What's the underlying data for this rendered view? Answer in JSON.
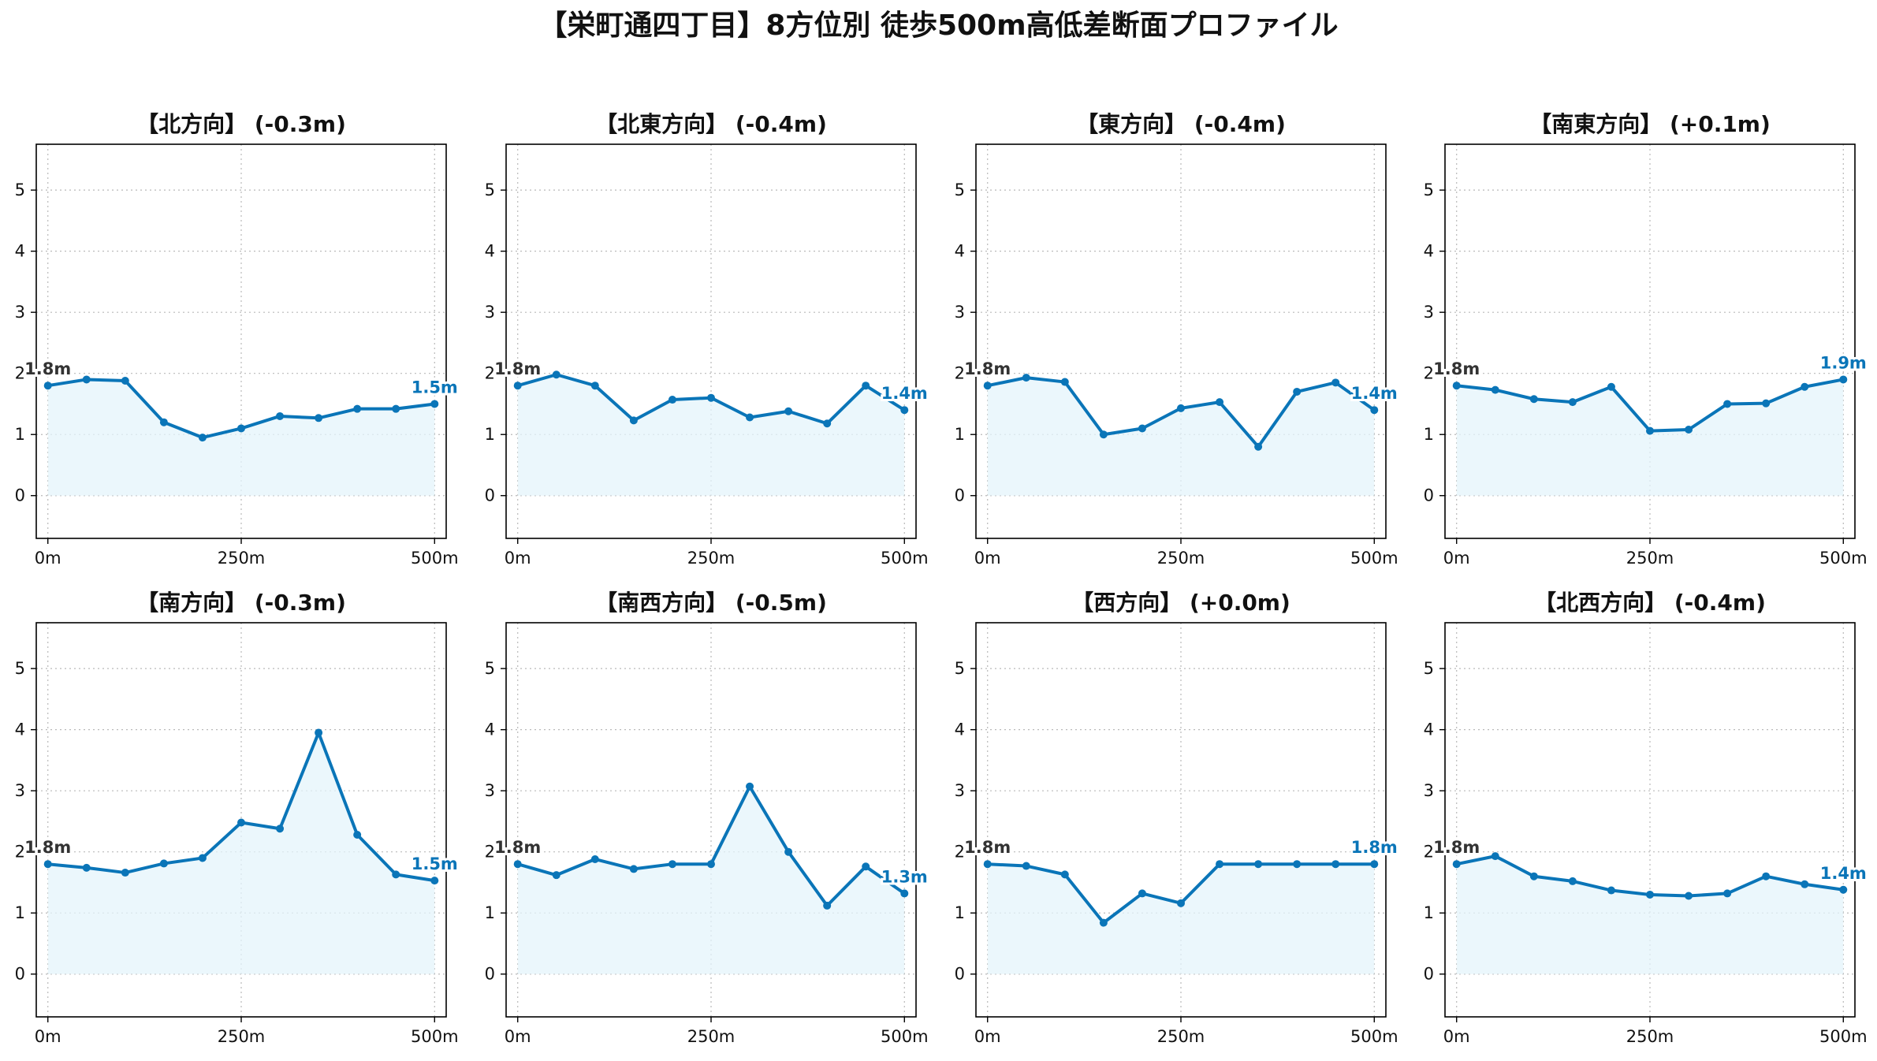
{
  "title": "【栄町通四丁目】8方位別 徒歩500m高低差断面プロファイル",
  "colors": {
    "line": "#0a75b8",
    "fill": "#e4f4fb",
    "start_label": "#333333",
    "end_label": "#0a75b8"
  },
  "chart_data": [
    {
      "type": "area",
      "title": "【北方向】 (-0.3m)",
      "x": [
        0,
        50,
        100,
        150,
        200,
        250,
        300,
        350,
        400,
        450,
        500
      ],
      "xticks": [
        0,
        250,
        500
      ],
      "xtick_labels": [
        "0m",
        "250m",
        "500m"
      ],
      "yticks": [
        0,
        1,
        2,
        3,
        4,
        5
      ],
      "ylim": [
        -0.7,
        5.75
      ],
      "xlim": [
        -15,
        515
      ],
      "grid": true,
      "series": [
        {
          "values": [
            1.8,
            1.9,
            1.88,
            1.2,
            0.95,
            1.1,
            1.3,
            1.27,
            1.42,
            1.42,
            1.5
          ]
        }
      ],
      "start_label": "1.8m",
      "end_label": "1.5m"
    },
    {
      "type": "area",
      "title": "【北東方向】 (-0.4m)",
      "x": [
        0,
        50,
        100,
        150,
        200,
        250,
        300,
        350,
        400,
        450,
        500
      ],
      "xticks": [
        0,
        250,
        500
      ],
      "xtick_labels": [
        "0m",
        "250m",
        "500m"
      ],
      "yticks": [
        0,
        1,
        2,
        3,
        4,
        5
      ],
      "ylim": [
        -0.7,
        5.75
      ],
      "xlim": [
        -15,
        515
      ],
      "grid": true,
      "series": [
        {
          "values": [
            1.8,
            1.98,
            1.8,
            1.23,
            1.57,
            1.6,
            1.28,
            1.38,
            1.18,
            1.8,
            1.4
          ]
        }
      ],
      "start_label": "1.8m",
      "end_label": "1.4m"
    },
    {
      "type": "area",
      "title": "【東方向】 (-0.4m)",
      "x": [
        0,
        50,
        100,
        150,
        200,
        250,
        300,
        350,
        400,
        450,
        500
      ],
      "xticks": [
        0,
        250,
        500
      ],
      "xtick_labels": [
        "0m",
        "250m",
        "500m"
      ],
      "yticks": [
        0,
        1,
        2,
        3,
        4,
        5
      ],
      "ylim": [
        -0.7,
        5.75
      ],
      "xlim": [
        -15,
        515
      ],
      "grid": true,
      "series": [
        {
          "values": [
            1.8,
            1.93,
            1.86,
            1.0,
            1.1,
            1.43,
            1.53,
            0.8,
            1.7,
            1.85,
            1.4
          ]
        }
      ],
      "start_label": "1.8m",
      "end_label": "1.4m"
    },
    {
      "type": "area",
      "title": "【南東方向】 (+0.1m)",
      "x": [
        0,
        50,
        100,
        150,
        200,
        250,
        300,
        350,
        400,
        450,
        500
      ],
      "xticks": [
        0,
        250,
        500
      ],
      "xtick_labels": [
        "0m",
        "250m",
        "500m"
      ],
      "yticks": [
        0,
        1,
        2,
        3,
        4,
        5
      ],
      "ylim": [
        -0.7,
        5.75
      ],
      "xlim": [
        -15,
        515
      ],
      "grid": true,
      "series": [
        {
          "values": [
            1.8,
            1.73,
            1.58,
            1.53,
            1.78,
            1.06,
            1.08,
            1.5,
            1.51,
            1.78,
            1.9
          ]
        }
      ],
      "start_label": "1.8m",
      "end_label": "1.9m"
    },
    {
      "type": "area",
      "title": "【南方向】 (-0.3m)",
      "x": [
        0,
        50,
        100,
        150,
        200,
        250,
        300,
        350,
        400,
        450,
        500
      ],
      "xticks": [
        0,
        250,
        500
      ],
      "xtick_labels": [
        "0m",
        "250m",
        "500m"
      ],
      "yticks": [
        0,
        1,
        2,
        3,
        4,
        5
      ],
      "ylim": [
        -0.7,
        5.75
      ],
      "xlim": [
        -15,
        515
      ],
      "grid": true,
      "series": [
        {
          "values": [
            1.8,
            1.74,
            1.66,
            1.81,
            1.9,
            2.48,
            2.38,
            3.95,
            2.28,
            1.63,
            1.53
          ]
        }
      ],
      "start_label": "1.8m",
      "end_label": "1.5m"
    },
    {
      "type": "area",
      "title": "【南西方向】 (-0.5m)",
      "x": [
        0,
        50,
        100,
        150,
        200,
        250,
        300,
        350,
        400,
        450,
        500
      ],
      "xticks": [
        0,
        250,
        500
      ],
      "xtick_labels": [
        "0m",
        "250m",
        "500m"
      ],
      "yticks": [
        0,
        1,
        2,
        3,
        4,
        5
      ],
      "ylim": [
        -0.7,
        5.75
      ],
      "xlim": [
        -15,
        515
      ],
      "grid": true,
      "series": [
        {
          "values": [
            1.8,
            1.62,
            1.88,
            1.72,
            1.8,
            1.8,
            3.07,
            2.0,
            1.12,
            1.76,
            1.32
          ]
        }
      ],
      "start_label": "1.8m",
      "end_label": "1.3m"
    },
    {
      "type": "area",
      "title": "【西方向】 (+0.0m)",
      "x": [
        0,
        50,
        100,
        150,
        200,
        250,
        300,
        350,
        400,
        450,
        500
      ],
      "xticks": [
        0,
        250,
        500
      ],
      "xtick_labels": [
        "0m",
        "250m",
        "500m"
      ],
      "yticks": [
        0,
        1,
        2,
        3,
        4,
        5
      ],
      "ylim": [
        -0.7,
        5.75
      ],
      "xlim": [
        -15,
        515
      ],
      "grid": true,
      "series": [
        {
          "values": [
            1.8,
            1.77,
            1.63,
            0.84,
            1.32,
            1.16,
            1.8,
            1.8,
            1.8,
            1.8,
            1.8
          ]
        }
      ],
      "start_label": "1.8m",
      "end_label": "1.8m"
    },
    {
      "type": "area",
      "title": "【北西方向】 (-0.4m)",
      "x": [
        0,
        50,
        100,
        150,
        200,
        250,
        300,
        350,
        400,
        450,
        500
      ],
      "xticks": [
        0,
        250,
        500
      ],
      "xtick_labels": [
        "0m",
        "250m",
        "500m"
      ],
      "yticks": [
        0,
        1,
        2,
        3,
        4,
        5
      ],
      "ylim": [
        -0.7,
        5.75
      ],
      "xlim": [
        -15,
        515
      ],
      "grid": true,
      "series": [
        {
          "values": [
            1.8,
            1.93,
            1.6,
            1.52,
            1.37,
            1.3,
            1.28,
            1.32,
            1.6,
            1.47,
            1.38
          ]
        }
      ],
      "start_label": "1.8m",
      "end_label": "1.4m"
    }
  ]
}
